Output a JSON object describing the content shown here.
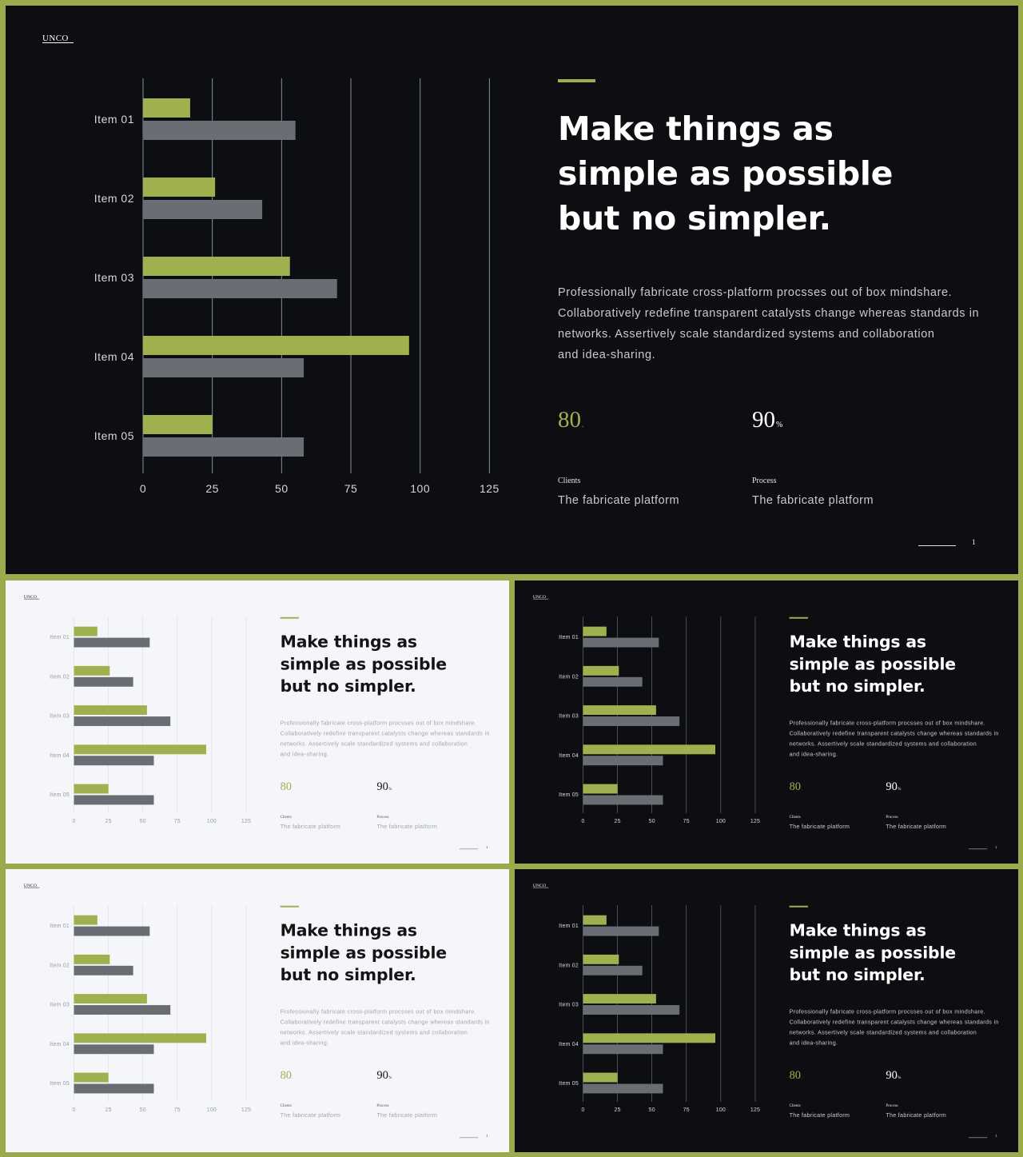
{
  "brand": "UNCO",
  "headline": [
    "Make things as",
    "simple as possible",
    "but no simpler."
  ],
  "body": [
    "Professionally fabricate cross-platform procsses out of box mindshare.",
    "Collaboratively redefine transparent catalysts change whereas standards in",
    "networks. Assertively scale standardized systems and collaboration",
    "and idea-sharing."
  ],
  "stats": [
    {
      "value": "80",
      "unit": ".",
      "label": "Clients",
      "desc": "The fabricate platform"
    },
    {
      "value": "90",
      "unit": "%",
      "label": "Process",
      "desc": "The fabricate platform"
    }
  ],
  "page_number": "1",
  "colors": {
    "accent": "#9fb14e",
    "secondary": "#6a6d74",
    "dark_bg": "#0d0e12",
    "light_bg": "#f5f6fa",
    "frame": "#9aaa4c"
  },
  "slides": [
    {
      "theme": "dark",
      "size": "large"
    },
    {
      "theme": "light",
      "size": "small"
    },
    {
      "theme": "dark",
      "size": "small"
    },
    {
      "theme": "light",
      "size": "small"
    },
    {
      "theme": "dark",
      "size": "small"
    }
  ],
  "chart_data": {
    "type": "bar",
    "orientation": "horizontal",
    "categories": [
      "Item 01",
      "Item 02",
      "Item 03",
      "Item 04",
      "Item 05"
    ],
    "series": [
      {
        "values": [
          17,
          26,
          53,
          96,
          25
        ],
        "color": "#9fb14e"
      },
      {
        "values": [
          55,
          43,
          70,
          58,
          58
        ],
        "color": "#6a6d74"
      }
    ],
    "xticks": [
      "0",
      "25",
      "50",
      "75",
      "100",
      "125"
    ],
    "xlim": [
      0,
      125
    ],
    "grid": true
  }
}
